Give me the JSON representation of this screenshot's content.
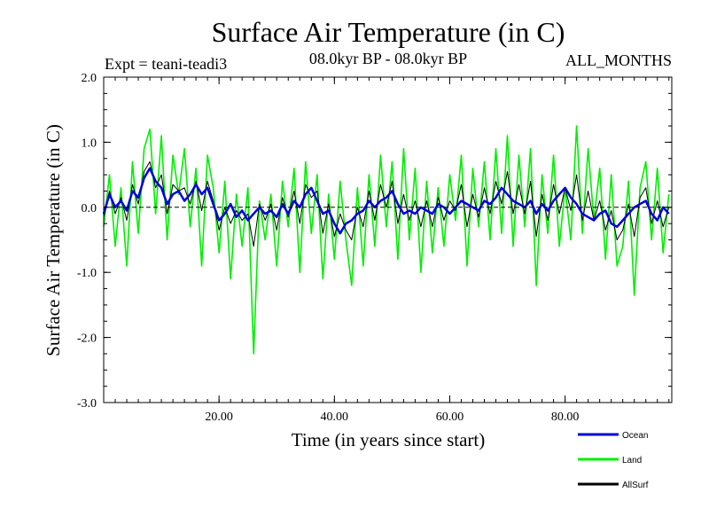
{
  "chart_data": {
    "type": "line",
    "title": "Surface Air Temperature (in C)",
    "subtitle_left": "Expt = teani-teadi3",
    "subtitle_center": "08.0kyr BP - 08.0kyr BP",
    "subtitle_right": "ALL_MONTHS",
    "xlabel": "Time (in years since start)",
    "ylabel": "Surface Air Temperature (in C)",
    "xlim": [
      0,
      98.5
    ],
    "ylim": [
      -3.0,
      2.0
    ],
    "xticks": [
      20,
      40,
      60,
      80
    ],
    "xtick_labels": [
      "20.00",
      "40.00",
      "60.00",
      "80.00"
    ],
    "yticks": [
      2.0,
      1.0,
      0.0,
      -1.0,
      -2.0,
      -3.0
    ],
    "ytick_labels": [
      "2.0",
      "1.0",
      "0.0",
      "-1.0",
      "-2.0",
      "-3.0"
    ],
    "zero_line": true,
    "series": [
      {
        "name": "Land",
        "color": "#00ee00",
        "x": [
          0,
          1,
          2,
          3,
          4,
          5,
          6,
          7,
          8,
          9,
          10,
          11,
          12,
          13,
          14,
          15,
          16,
          17,
          18,
          19,
          20,
          21,
          22,
          23,
          24,
          25,
          26,
          27,
          28,
          29,
          30,
          31,
          32,
          33,
          34,
          35,
          36,
          37,
          38,
          39,
          40,
          41,
          42,
          43,
          44,
          45,
          46,
          47,
          48,
          49,
          50,
          51,
          52,
          53,
          54,
          55,
          56,
          57,
          58,
          59,
          60,
          61,
          62,
          63,
          64,
          65,
          66,
          67,
          68,
          69,
          70,
          71,
          72,
          73,
          74,
          75,
          76,
          77,
          78,
          79,
          80,
          81,
          82,
          83,
          84,
          85,
          86,
          87,
          88,
          89,
          90,
          91,
          92,
          93,
          94,
          95,
          96,
          97,
          98
        ],
        "values": [
          -0.3,
          0.5,
          -0.6,
          0.3,
          -0.9,
          0.7,
          -0.4,
          0.9,
          1.2,
          -0.1,
          1.1,
          -0.5,
          0.8,
          0.2,
          0.9,
          -0.3,
          0.6,
          -0.9,
          0.8,
          0.3,
          -0.7,
          0.4,
          -1.1,
          0.2,
          -0.6,
          0.3,
          -2.25,
          0.1,
          -0.5,
          0.2,
          -0.9,
          0.4,
          -0.3,
          0.6,
          -1.0,
          0.7,
          -0.4,
          0.5,
          -1.1,
          0.2,
          -0.8,
          0.4,
          -0.5,
          -1.2,
          0.3,
          -0.9,
          0.5,
          -0.6,
          0.8,
          -0.3,
          0.7,
          -0.8,
          0.9,
          -0.5,
          0.6,
          -1.0,
          0.4,
          -0.7,
          0.3,
          -0.6,
          0.5,
          -0.2,
          0.8,
          -0.9,
          0.6,
          -0.3,
          0.7,
          -0.5,
          0.9,
          -0.4,
          1.1,
          -0.6,
          0.8,
          -0.3,
          0.9,
          -1.2,
          0.5,
          -0.4,
          0.8,
          -0.6,
          0.3,
          -0.5,
          1.25,
          -0.4,
          0.9,
          -0.2,
          0.6,
          -0.8,
          0.5,
          -0.9,
          -0.6,
          0.4,
          -1.35,
          0.3,
          0.7,
          -0.5,
          0.6,
          -0.7,
          0.2
        ]
      },
      {
        "name": "Ocean",
        "color": "#0000dd",
        "x": [
          0,
          1,
          2,
          3,
          4,
          5,
          6,
          7,
          8,
          9,
          10,
          11,
          12,
          13,
          14,
          15,
          16,
          17,
          18,
          19,
          20,
          21,
          22,
          23,
          24,
          25,
          26,
          27,
          28,
          29,
          30,
          31,
          32,
          33,
          34,
          35,
          36,
          37,
          38,
          39,
          40,
          41,
          42,
          43,
          44,
          45,
          46,
          47,
          48,
          49,
          50,
          51,
          52,
          53,
          54,
          55,
          56,
          57,
          58,
          59,
          60,
          61,
          62,
          63,
          64,
          65,
          66,
          67,
          68,
          69,
          70,
          71,
          72,
          73,
          74,
          75,
          76,
          77,
          78,
          79,
          80,
          81,
          82,
          83,
          84,
          85,
          86,
          87,
          88,
          89,
          90,
          91,
          92,
          93,
          94,
          95,
          96,
          97,
          98
        ],
        "values": [
          -0.1,
          0.2,
          0.0,
          0.1,
          -0.05,
          0.25,
          0.15,
          0.45,
          0.6,
          0.4,
          0.3,
          0.05,
          0.2,
          0.25,
          0.1,
          0.2,
          0.35,
          0.2,
          0.3,
          0.05,
          -0.2,
          -0.1,
          0.05,
          -0.15,
          -0.05,
          -0.2,
          -0.1,
          0.0,
          -0.1,
          -0.05,
          -0.15,
          0.05,
          -0.1,
          0.1,
          0.0,
          0.2,
          0.3,
          0.1,
          -0.1,
          -0.05,
          -0.25,
          -0.4,
          -0.25,
          -0.2,
          -0.1,
          -0.05,
          0.1,
          0.0,
          0.1,
          0.15,
          0.25,
          0.05,
          -0.1,
          -0.05,
          -0.1,
          0.0,
          -0.05,
          -0.1,
          0.05,
          0.0,
          -0.1,
          0.0,
          0.1,
          0.05,
          0.0,
          -0.05,
          0.1,
          0.05,
          0.15,
          0.3,
          0.2,
          0.1,
          0.05,
          0.0,
          0.1,
          -0.1,
          0.05,
          -0.05,
          0.1,
          0.2,
          0.3,
          0.15,
          0.05,
          -0.1,
          -0.15,
          -0.2,
          -0.1,
          -0.05,
          -0.25,
          -0.3,
          -0.2,
          -0.1,
          0.0,
          0.05,
          0.1,
          -0.1,
          -0.2,
          0.0,
          -0.1
        ]
      },
      {
        "name": "AllSurf",
        "color": "#000000",
        "x": [
          0,
          1,
          2,
          3,
          4,
          5,
          6,
          7,
          8,
          9,
          10,
          11,
          12,
          13,
          14,
          15,
          16,
          17,
          18,
          19,
          20,
          21,
          22,
          23,
          24,
          25,
          26,
          27,
          28,
          29,
          30,
          31,
          32,
          33,
          34,
          35,
          36,
          37,
          38,
          39,
          40,
          41,
          42,
          43,
          44,
          45,
          46,
          47,
          48,
          49,
          50,
          51,
          52,
          53,
          54,
          55,
          56,
          57,
          58,
          59,
          60,
          61,
          62,
          63,
          64,
          65,
          66,
          67,
          68,
          69,
          70,
          71,
          72,
          73,
          74,
          75,
          76,
          77,
          78,
          79,
          80,
          81,
          82,
          83,
          84,
          85,
          86,
          87,
          88,
          89,
          90,
          91,
          92,
          93,
          94,
          95,
          96,
          97,
          98
        ],
        "values": [
          -0.15,
          0.25,
          -0.1,
          0.15,
          -0.2,
          0.35,
          0.05,
          0.55,
          0.7,
          0.3,
          0.5,
          -0.1,
          0.35,
          0.25,
          0.3,
          0.05,
          0.4,
          -0.05,
          0.4,
          0.1,
          -0.35,
          0.0,
          -0.25,
          -0.05,
          -0.2,
          -0.1,
          -0.6,
          0.05,
          -0.2,
          0.05,
          -0.35,
          0.15,
          -0.15,
          0.25,
          -0.25,
          0.35,
          0.15,
          0.25,
          -0.4,
          0.05,
          -0.45,
          -0.1,
          -0.35,
          -0.5,
          0.0,
          -0.3,
          0.25,
          -0.2,
          0.35,
          0.0,
          0.4,
          -0.25,
          0.2,
          -0.2,
          0.1,
          -0.3,
          0.1,
          -0.3,
          0.15,
          -0.2,
          0.1,
          -0.05,
          0.35,
          -0.3,
          0.2,
          -0.15,
          0.3,
          -0.1,
          0.4,
          0.05,
          0.55,
          -0.1,
          0.35,
          -0.1,
          0.4,
          -0.45,
          0.2,
          -0.2,
          0.35,
          -0.1,
          0.3,
          -0.05,
          0.5,
          -0.2,
          0.25,
          -0.2,
          0.1,
          -0.35,
          -0.05,
          -0.5,
          -0.35,
          0.05,
          -0.45,
          0.15,
          0.3,
          -0.25,
          0.1,
          -0.3,
          0.0
        ]
      }
    ],
    "legend": {
      "placement": "bottom-right",
      "entries": [
        {
          "label": "Ocean",
          "color": "#0000dd"
        },
        {
          "label": "Land",
          "color": "#00ee00"
        },
        {
          "label": "AllSurf",
          "color": "#000000"
        }
      ]
    }
  }
}
